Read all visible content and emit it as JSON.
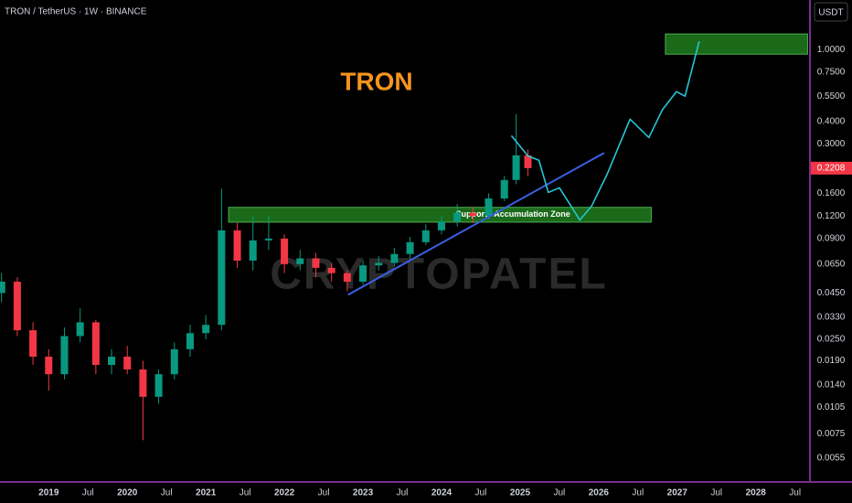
{
  "chart_data": {
    "type": "candlestick",
    "title": "TRON / TetherUS · 1W · BINANCE",
    "annotation": "TRON",
    "currency": "USDT",
    "watermark": "CRYPTOPATEL",
    "log_scale": true,
    "up_color": "#089981",
    "down_color": "#f23645",
    "x": [
      2018.4,
      2018.6,
      2018.8,
      2019.0,
      2019.2,
      2019.4,
      2019.6,
      2019.8,
      2020.0,
      2020.2,
      2020.4,
      2020.6,
      2020.8,
      2021.0,
      2021.2,
      2021.4,
      2021.6,
      2021.8,
      2022.0,
      2022.2,
      2022.4,
      2022.6,
      2022.8,
      2023.0,
      2023.2,
      2023.4,
      2023.6,
      2023.8,
      2024.0,
      2024.2,
      2024.4,
      2024.6,
      2024.8,
      2024.95,
      2025.1
    ],
    "open": [
      0.045,
      0.052,
      0.028,
      0.02,
      0.016,
      0.026,
      0.031,
      0.018,
      0.02,
      0.017,
      0.012,
      0.016,
      0.022,
      0.027,
      0.03,
      0.1,
      0.068,
      0.088,
      0.09,
      0.065,
      0.07,
      0.062,
      0.058,
      0.052,
      0.064,
      0.066,
      0.074,
      0.086,
      0.1,
      0.112,
      0.125,
      0.12,
      0.15,
      0.19,
      0.26
    ],
    "high": [
      0.058,
      0.055,
      0.031,
      0.022,
      0.029,
      0.037,
      0.032,
      0.022,
      0.023,
      0.019,
      0.017,
      0.024,
      0.03,
      0.034,
      0.17,
      0.11,
      0.12,
      0.12,
      0.095,
      0.078,
      0.075,
      0.066,
      0.06,
      0.068,
      0.072,
      0.08,
      0.092,
      0.108,
      0.12,
      0.14,
      0.135,
      0.16,
      0.2,
      0.44,
      0.28
    ],
    "low": [
      0.04,
      0.026,
      0.018,
      0.013,
      0.015,
      0.024,
      0.016,
      0.016,
      0.016,
      0.0069,
      0.011,
      0.015,
      0.02,
      0.025,
      0.028,
      0.062,
      0.06,
      0.078,
      0.058,
      0.06,
      0.055,
      0.052,
      0.046,
      0.05,
      0.06,
      0.063,
      0.07,
      0.083,
      0.095,
      0.105,
      0.11,
      0.115,
      0.145,
      0.18,
      0.2
    ],
    "close": [
      0.052,
      0.028,
      0.02,
      0.016,
      0.026,
      0.031,
      0.018,
      0.02,
      0.017,
      0.012,
      0.016,
      0.022,
      0.027,
      0.03,
      0.1,
      0.068,
      0.088,
      0.09,
      0.065,
      0.07,
      0.062,
      0.058,
      0.052,
      0.064,
      0.066,
      0.074,
      0.086,
      0.1,
      0.112,
      0.125,
      0.12,
      0.15,
      0.19,
      0.26,
      0.2208
    ],
    "last_price": 0.2208,
    "support_zone": {
      "label": "Support / Accumulation Zone",
      "x": [
        2021.29,
        2026.67
      ],
      "y": [
        0.111,
        0.134
      ],
      "color": "#1e7d1e"
    },
    "target_zone": {
      "x": [
        2026.85,
        2028.66
      ],
      "y": [
        0.943,
        1.22
      ],
      "color": "#1e7d1e"
    },
    "trend_line": {
      "x": [
        2022.81,
        2026.07
      ],
      "values": [
        0.044,
        0.268
      ],
      "color": "#3a5fe0"
    },
    "projection": {
      "x": [
        2024.89,
        2025.1,
        2025.24,
        2025.36,
        2025.5,
        2025.65,
        2025.76,
        2025.91,
        2026.11,
        2026.4,
        2026.64,
        2026.81,
        2026.99,
        2027.1,
        2027.28
      ],
      "values": [
        0.334,
        0.258,
        0.244,
        0.162,
        0.172,
        0.136,
        0.114,
        0.136,
        0.205,
        0.412,
        0.326,
        0.463,
        0.585,
        0.552,
        1.11
      ],
      "color": "#27c6d6"
    },
    "xlim": [
      2018.38,
      2028.69
    ],
    "ylim": [
      0.0044,
      1.88
    ],
    "xticks": [
      2019,
      {
        "value": 2019.5,
        "label": "Jul"
      },
      2020,
      {
        "value": 2020.5,
        "label": "Jul"
      },
      2021,
      {
        "value": 2021.5,
        "label": "Jul"
      },
      2022,
      {
        "value": 2022.5,
        "label": "Jul"
      },
      2023,
      {
        "value": 2023.5,
        "label": "Jul"
      },
      2024,
      {
        "value": 2024.5,
        "label": "Jul"
      },
      2025,
      {
        "value": 2025.5,
        "label": "Jul"
      },
      2026,
      {
        "value": 2026.5,
        "label": "Jul"
      },
      2027,
      {
        "value": 2027.5,
        "label": "Jul"
      },
      2028,
      {
        "value": 2028.5,
        "label": "Jul"
      }
    ],
    "yticks": [
      0.0055,
      0.0075,
      0.0105,
      {
        "value": 0.014,
        "label": "0.0140"
      },
      {
        "value": 0.019,
        "label": "0.0190"
      },
      {
        "value": 0.025,
        "label": "0.0250"
      },
      {
        "value": 0.033,
        "label": "0.0330"
      },
      {
        "value": 0.045,
        "label": "0.0450"
      },
      {
        "value": 0.065,
        "label": "0.0650"
      },
      {
        "value": 0.09,
        "label": "0.0900"
      },
      {
        "value": 0.12,
        "label": "0.1200"
      },
      {
        "value": 0.16,
        "label": "0.1600"
      },
      {
        "value": 0.3,
        "label": "0.3000"
      },
      {
        "value": 0.4,
        "label": "0.4000"
      },
      {
        "value": 0.55,
        "label": "0.5500"
      },
      {
        "value": 0.75,
        "label": "0.7500"
      },
      {
        "value": 1,
        "label": "1.0000"
      }
    ]
  }
}
